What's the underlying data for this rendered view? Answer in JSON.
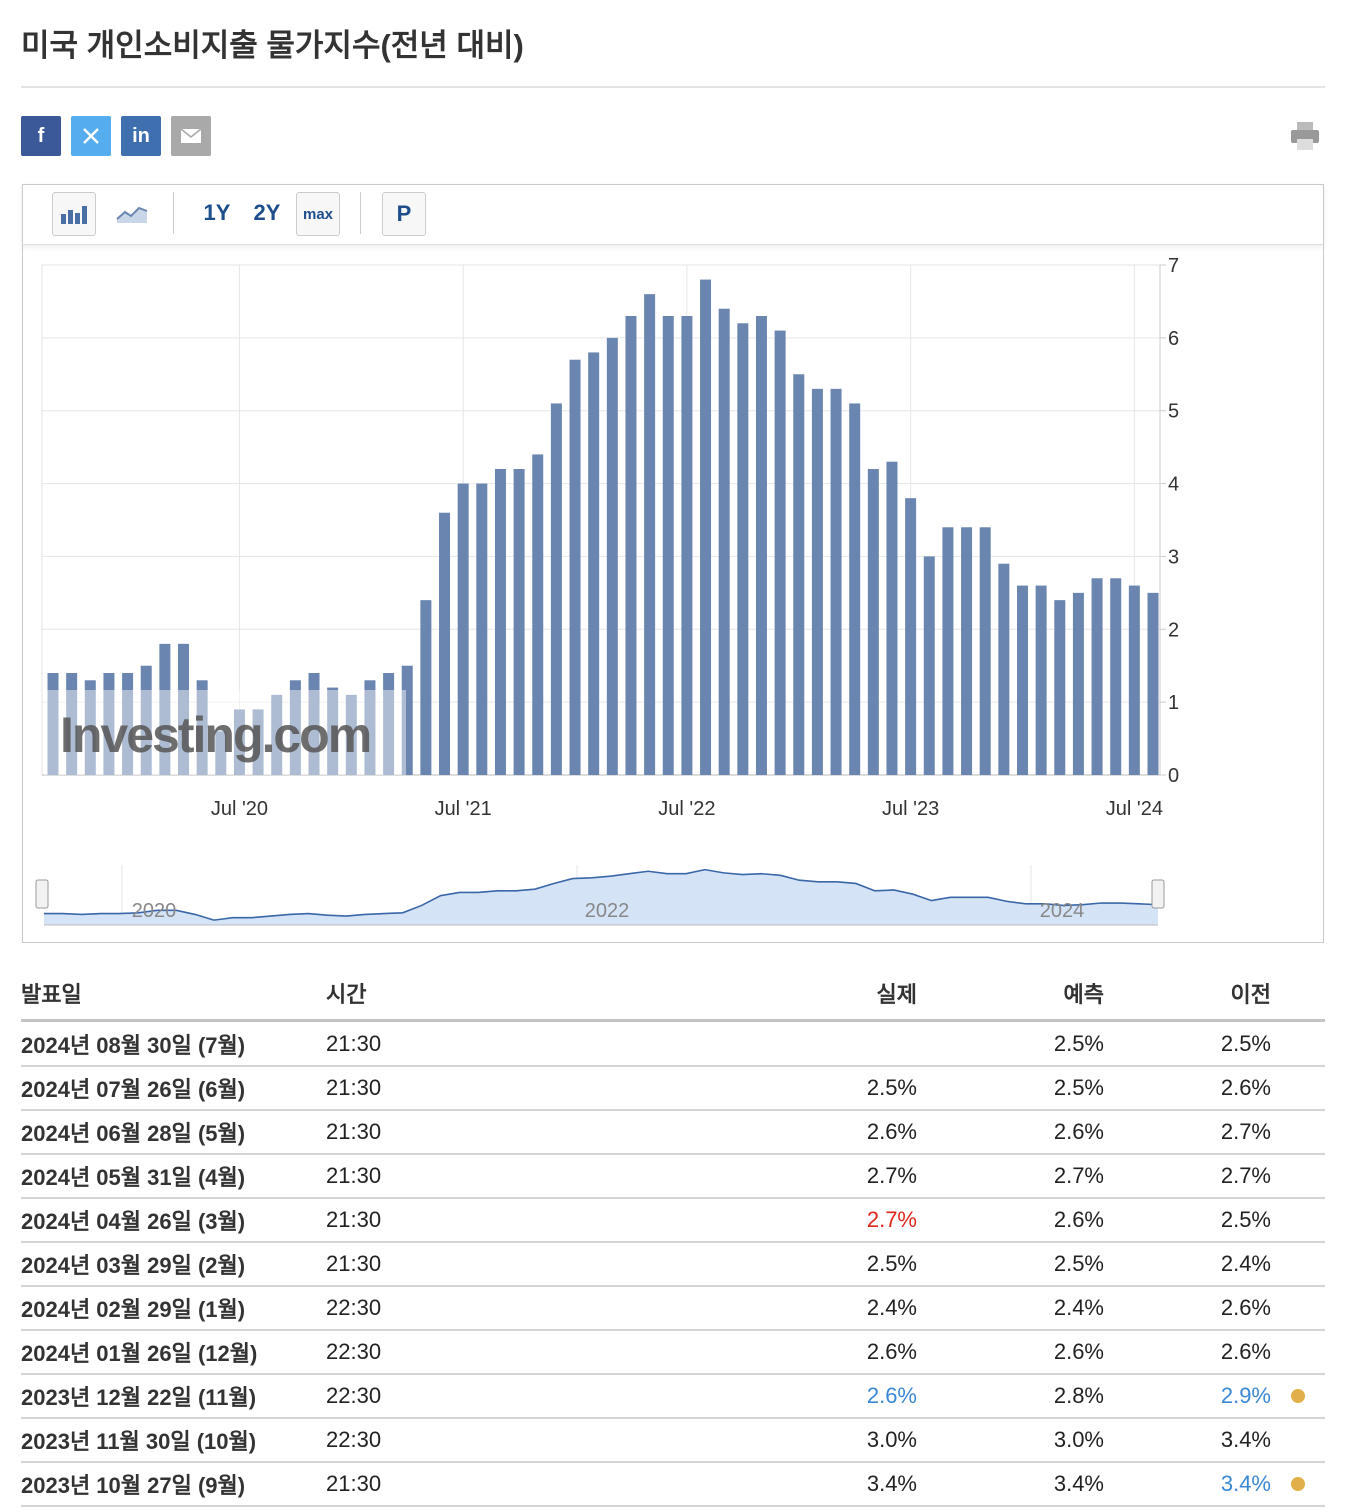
{
  "title": "미국 개인소비지출 물가지수(전년 대비)",
  "share": {
    "facebook": "f",
    "linkedin": "in"
  },
  "toolbar": [
    "1Y",
    "2Y",
    "max",
    "P"
  ],
  "chart_data": {
    "type": "bar",
    "categories": [
      null,
      null,
      null,
      null,
      null,
      null,
      null,
      null,
      null,
      null,
      "Jul '20",
      null,
      null,
      null,
      null,
      null,
      null,
      null,
      null,
      null,
      null,
      null,
      "Jul '21",
      null,
      null,
      null,
      null,
      null,
      null,
      null,
      null,
      null,
      null,
      null,
      "Jul '22",
      null,
      null,
      null,
      null,
      null,
      null,
      null,
      null,
      null,
      null,
      null,
      "Jul '23",
      null,
      null,
      null,
      null,
      null,
      null,
      null,
      null,
      null,
      null,
      null,
      "Jul '24",
      null
    ],
    "values": [
      1.4,
      1.4,
      1.3,
      1.4,
      1.4,
      1.5,
      1.8,
      1.8,
      1.3,
      0.6,
      0.9,
      0.9,
      1.1,
      1.3,
      1.4,
      1.2,
      1.1,
      1.3,
      1.4,
      1.5,
      2.4,
      3.6,
      4.0,
      4.0,
      4.2,
      4.2,
      4.4,
      5.1,
      5.7,
      5.8,
      6.0,
      6.3,
      6.6,
      6.3,
      6.3,
      6.8,
      6.4,
      6.2,
      6.3,
      6.1,
      5.5,
      5.3,
      5.3,
      5.1,
      4.2,
      4.3,
      3.8,
      3.0,
      3.4,
      3.4,
      3.4,
      2.9,
      2.6,
      2.6,
      2.4,
      2.5,
      2.7,
      2.7,
      2.6,
      2.5
    ],
    "color": "#6a86b0",
    "ylim": [
      0,
      7
    ],
    "yticks": [
      0,
      1,
      2,
      3,
      4,
      5,
      6,
      7
    ],
    "grid": true,
    "watermark": "Investing.com",
    "navigator_labels": [
      "2020",
      "2022",
      "2024"
    ]
  },
  "table": {
    "columns": [
      "발표일",
      "시간",
      "실제",
      "예측",
      "이전"
    ],
    "rows": [
      {
        "date": "2024년 08월 30일 (7월)",
        "time": "21:30",
        "actual": null,
        "forecast": "2.5%",
        "previous": "2.5%"
      },
      {
        "date": "2024년 07월 26일 (6월)",
        "time": "21:30",
        "actual": "2.5%",
        "forecast": "2.5%",
        "previous": "2.6%"
      },
      {
        "date": "2024년 06월 28일 (5월)",
        "time": "21:30",
        "actual": "2.6%",
        "forecast": "2.6%",
        "previous": "2.7%"
      },
      {
        "date": "2024년 05월 31일 (4월)",
        "time": "21:30",
        "actual": "2.7%",
        "forecast": "2.7%",
        "previous": "2.7%"
      },
      {
        "date": "2024년 04월 26일 (3월)",
        "time": "21:30",
        "actual": "2.7%",
        "forecast": "2.6%",
        "previous": "2.5%",
        "actual_color": "#e0261d"
      },
      {
        "date": "2024년 03월 29일 (2월)",
        "time": "21:30",
        "actual": "2.5%",
        "forecast": "2.5%",
        "previous": "2.4%"
      },
      {
        "date": "2024년 02월 29일 (1월)",
        "time": "22:30",
        "actual": "2.4%",
        "forecast": "2.4%",
        "previous": "2.6%"
      },
      {
        "date": "2024년 01월 26일 (12월)",
        "time": "22:30",
        "actual": "2.6%",
        "forecast": "2.6%",
        "previous": "2.6%"
      },
      {
        "date": "2023년 12월 22일 (11월)",
        "time": "22:30",
        "actual": "2.6%",
        "forecast": "2.8%",
        "previous": "2.9%",
        "actual_color": "#3a88d4",
        "previous_color": "#3a88d4",
        "revised": true
      },
      {
        "date": "2023년 11월 30일 (10월)",
        "time": "22:30",
        "actual": "3.0%",
        "forecast": "3.0%",
        "previous": "3.4%"
      },
      {
        "date": "2023년 10월 27일 (9월)",
        "time": "21:30",
        "actual": "3.4%",
        "forecast": "3.4%",
        "previous": "3.4%",
        "previous_color": "#3a88d4",
        "revised": true
      }
    ]
  }
}
